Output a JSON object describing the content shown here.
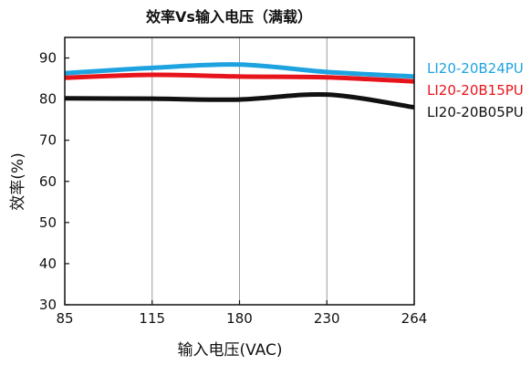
{
  "chart_data": {
    "type": "line",
    "title": "效率Vs输入电压（满载）",
    "xlabel": "输入电压(VAC)",
    "ylabel": "效率(%)",
    "x_ticks": [
      "85",
      "115",
      "180",
      "230",
      "264"
    ],
    "y_ticks": [
      "30",
      "40",
      "50",
      "60",
      "70",
      "80",
      "90"
    ],
    "ylim": [
      30,
      95
    ],
    "grid": "vertical",
    "legend_position": "right",
    "series": [
      {
        "name": "LI20-20B24PU",
        "color": "#1fa3e0",
        "points": [
          {
            "x": "85",
            "y": 86.3
          },
          {
            "x": "115",
            "y": 87.6
          },
          {
            "x": "180",
            "y": 88.4
          },
          {
            "x": "230",
            "y": 86.6
          },
          {
            "x": "264",
            "y": 85.5
          }
        ]
      },
      {
        "name": "LI20-20B15PU",
        "color": "#e8141b",
        "points": [
          {
            "x": "85",
            "y": 85.2
          },
          {
            "x": "115",
            "y": 85.9
          },
          {
            "x": "180",
            "y": 85.5
          },
          {
            "x": "230",
            "y": 85.3
          },
          {
            "x": "264",
            "y": 84.3
          }
        ]
      },
      {
        "name": "LI20-20B05PU",
        "color": "#111111",
        "points": [
          {
            "x": "85",
            "y": 80.2
          },
          {
            "x": "115",
            "y": 80.1
          },
          {
            "x": "180",
            "y": 79.9
          },
          {
            "x": "230",
            "y": 81.1
          },
          {
            "x": "264",
            "y": 78.0
          }
        ]
      }
    ]
  }
}
